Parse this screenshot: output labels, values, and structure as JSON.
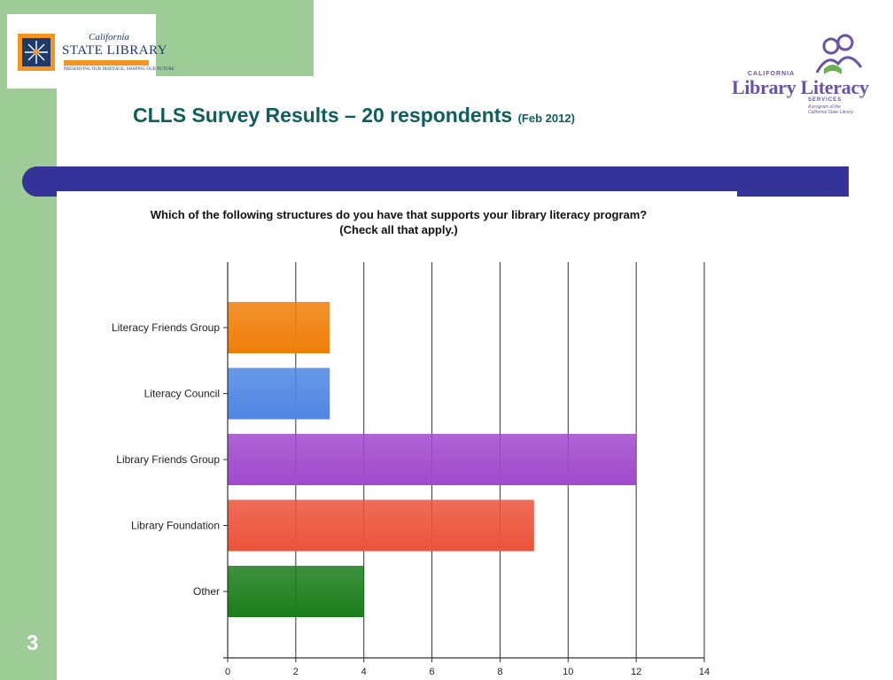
{
  "slide": {
    "title_main": "CLLS Survey Results – 20 respondents",
    "title_date": "(Feb 2012)",
    "number": "3"
  },
  "logo_left": {
    "line1": "California",
    "line2": "STATE LIBRARY",
    "tagline": "PRESERVING OUR HERITAGE, SHAPING OUR FUTURE"
  },
  "logo_right": {
    "line1": "CALIFORNIA",
    "line2": "Library Literacy",
    "line3": "SERVICES",
    "line4": "A program of the",
    "line5": "California State Library"
  },
  "colors": {
    "left_panel": "#9dcc96",
    "band": "#35339a",
    "title": "#0e5e5e"
  },
  "chart_data": {
    "type": "bar",
    "orientation": "horizontal",
    "title": "Which of the following structures do you have that supports your library literacy program? (Check all that apply.)",
    "categories": [
      "Literacy Friends Group",
      "Literacy Council",
      "Library Friends Group",
      "Library Foundation",
      "Other"
    ],
    "values": [
      3,
      3,
      12,
      9,
      4
    ],
    "colors": [
      "#f07f09",
      "#4f86e3",
      "#a049cd",
      "#ec533a",
      "#1b7e1b"
    ],
    "xlim": [
      0,
      14
    ],
    "xticks": [
      0,
      2,
      4,
      6,
      8,
      10,
      12,
      14
    ],
    "grid": true,
    "legend": "none"
  }
}
